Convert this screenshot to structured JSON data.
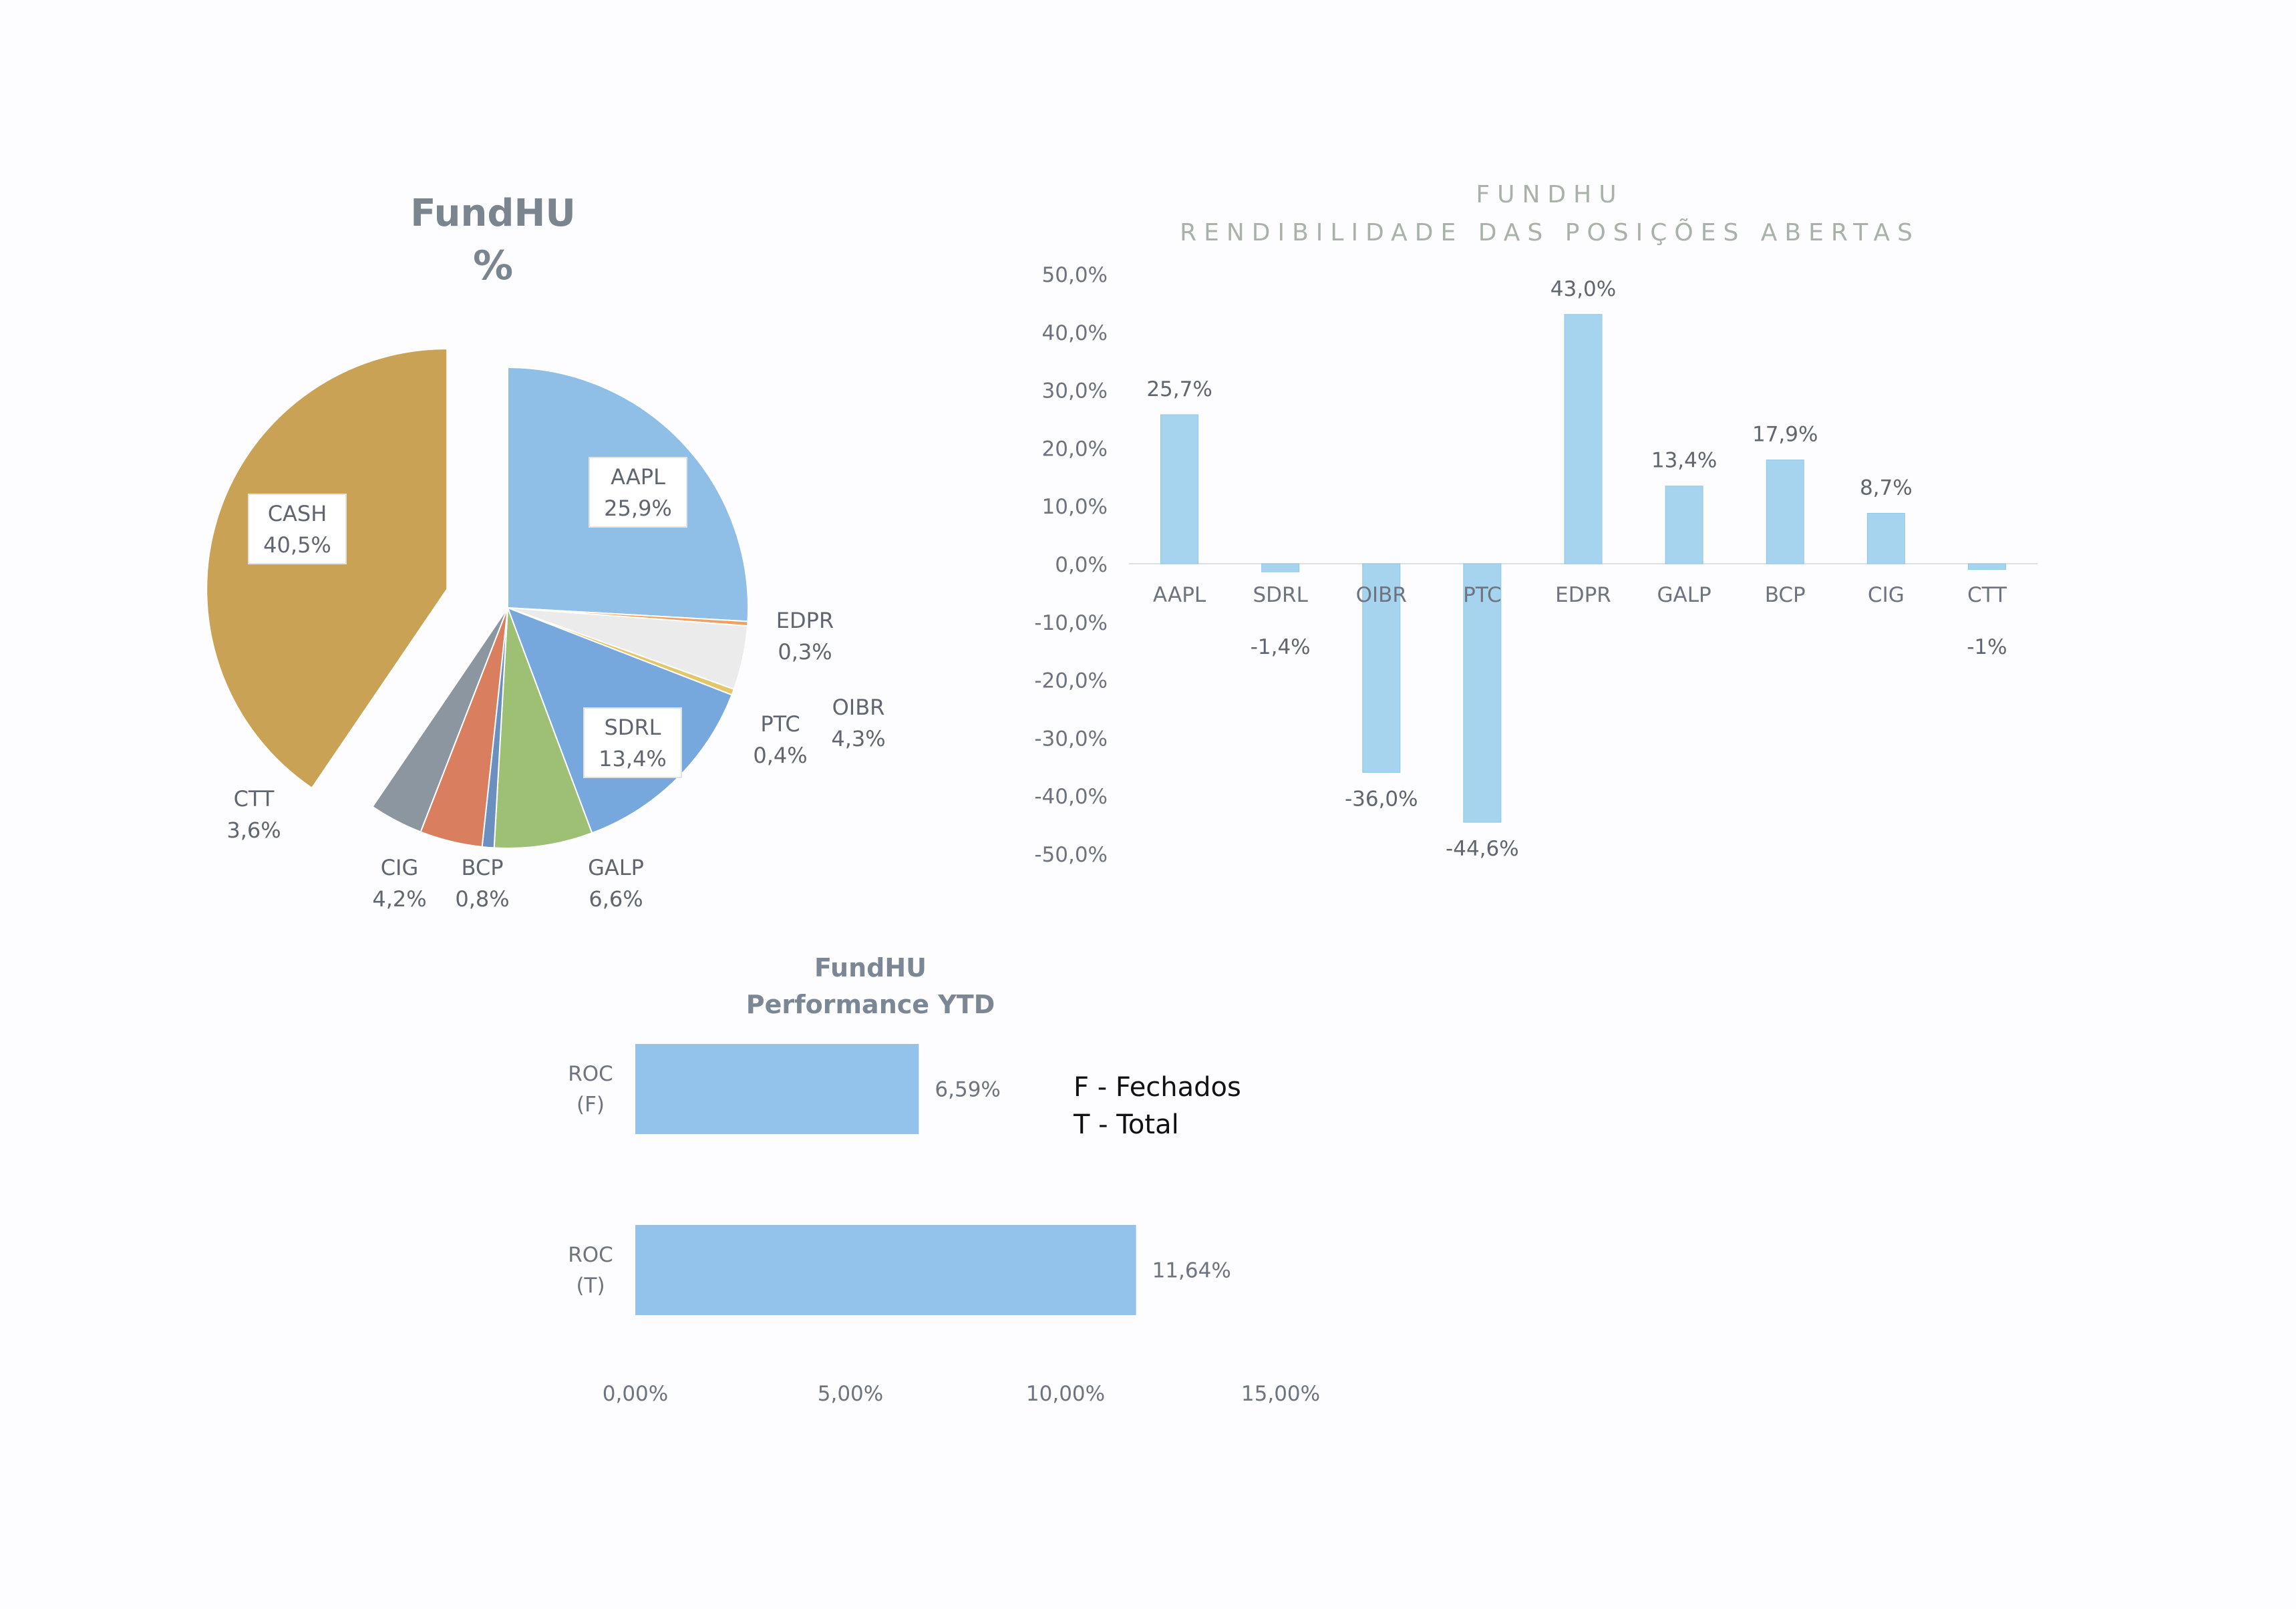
{
  "colors": {
    "aapl": "#8fbfe6",
    "cash": "#c9a256",
    "edpr": "#f0a060",
    "ptc": "#e2c66a",
    "oibr": "#ecebec",
    "sdrl": "#76a7dd",
    "galp": "#9dc075",
    "bcp": "#6b8fbe",
    "cig": "#d97e5e",
    "ctt": "#8c96a0",
    "bars": "#a6d4ef",
    "hbars": "#93c3ea"
  },
  "chart_data": [
    {
      "type": "pie",
      "title": "FundHU",
      "subtitle": "%",
      "slices": [
        {
          "label": "AAPL",
          "value": 25.9,
          "value_label": "25,9%",
          "color_key": "aapl"
        },
        {
          "label": "EDPR",
          "value": 0.3,
          "value_label": "0,3%",
          "color_key": "edpr"
        },
        {
          "label": "OIBR",
          "value": 4.3,
          "value_label": "4,3%",
          "color_key": "oibr"
        },
        {
          "label": "PTC",
          "value": 0.4,
          "value_label": "0,4%",
          "color_key": "ptc"
        },
        {
          "label": "SDRL",
          "value": 13.4,
          "value_label": "13,4%",
          "color_key": "sdrl"
        },
        {
          "label": "GALP",
          "value": 6.6,
          "value_label": "6,6%",
          "color_key": "galp"
        },
        {
          "label": "BCP",
          "value": 0.8,
          "value_label": "0,8%",
          "color_key": "bcp"
        },
        {
          "label": "CIG",
          "value": 4.2,
          "value_label": "4,2%",
          "color_key": "cig"
        },
        {
          "label": "CTT",
          "value": 3.6,
          "value_label": "3,6%",
          "color_key": "ctt"
        },
        {
          "label": "CASH",
          "value": 40.5,
          "value_label": "40,5%",
          "color_key": "cash"
        }
      ]
    },
    {
      "type": "bar",
      "title": "FUNDHU",
      "subtitle": "RENDIBILIDADE DAS POSIÇÕES ABERTAS",
      "categories": [
        "AAPL",
        "SDRL",
        "OIBR",
        "PTC",
        "EDPR",
        "GALP",
        "BCP",
        "CIG",
        "CTT"
      ],
      "values": [
        25.7,
        -1.4,
        -36.0,
        -44.6,
        43.0,
        13.4,
        17.9,
        8.7,
        -1.0
      ],
      "value_labels": [
        "25,7%",
        "-1,4%",
        "-36,0%",
        "-44,6%",
        "43,0%",
        "13,4%",
        "17,9%",
        "8,7%",
        "-1%"
      ],
      "ylim": [
        -50,
        50
      ],
      "yticks": [
        "50,0%",
        "40,0%",
        "30,0%",
        "20,0%",
        "10,0%",
        "0,0%",
        "-10,0%",
        "-20,0%",
        "-30,0%",
        "-40,0%",
        "-50,0%"
      ]
    },
    {
      "type": "bar",
      "orientation": "horizontal",
      "title": "FundHU",
      "subtitle": "Performance YTD",
      "categories": [
        [
          "ROC",
          "(F)"
        ],
        [
          "ROC",
          "(T)"
        ]
      ],
      "values": [
        6.59,
        11.64
      ],
      "value_labels": [
        "6,59%",
        "11,64%"
      ],
      "xlim": [
        0,
        15
      ],
      "xticks": [
        "0,00%",
        "5,00%",
        "10,00%",
        "15,00%"
      ],
      "legend_notes": [
        "F - Fechados",
        "T - Total"
      ]
    }
  ]
}
